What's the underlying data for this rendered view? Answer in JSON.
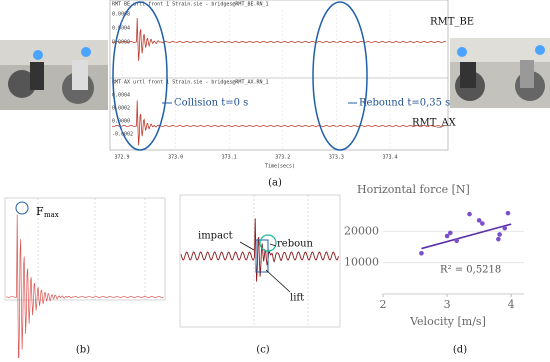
{
  "figure_a": {
    "upper_header": "RMT BE urtl front 1 Strain.sie - bridges@RMT_BE.RN_1",
    "lower_header": "RMT AX urtl front 1 Strain.sie - bridges@RMT_AX.RN_1",
    "upper_ticks": [
      "0.0008",
      "0.0004",
      "0.0000"
    ],
    "lower_ticks": [
      "0.0004",
      "0.0002",
      "0.0000",
      "-0.0002"
    ],
    "x_ticks": [
      "372.9",
      "373.0",
      "373.1",
      "373.2",
      "373.3",
      "373.4"
    ],
    "x_label": "Time(secs)",
    "series_upper": "RMT_BE",
    "series_lower": "RMT_AX",
    "collision": "Collision t=0 s",
    "rebound": "Rebound t=0,35 s",
    "caption": "(a)"
  },
  "figure_b": {
    "peak": "F",
    "peak_sub": "max",
    "caption": "(b)"
  },
  "figure_c": {
    "impact": "impact",
    "rebound": "reboun",
    "lift": "lift",
    "caption": "(c)"
  },
  "figure_d": {
    "caption": "(d)"
  },
  "chart_data": {
    "type": "scatter",
    "title": "Horizontal force [N]",
    "x_label": "Velocity [m/s]",
    "annotation": "R² = 0,5218",
    "x": [
      2.6,
      3.0,
      3.05,
      3.15,
      3.35,
      3.5,
      3.55,
      3.8,
      3.82,
      3.9,
      3.95
    ],
    "values": [
      13000,
      18500,
      19500,
      17000,
      25500,
      23500,
      22500,
      17500,
      19000,
      21000,
      25800
    ],
    "color": "#7b4fc9",
    "trend": {
      "x": [
        2.6,
        4
      ],
      "values": [
        14500,
        22300
      ],
      "color": "#5b2fa8"
    },
    "xlim": [
      2,
      4.2
    ],
    "ylim": [
      0,
      30000
    ],
    "xticks": [
      2,
      3,
      4
    ],
    "yticks": [
      10000,
      20000
    ],
    "grid": true
  }
}
